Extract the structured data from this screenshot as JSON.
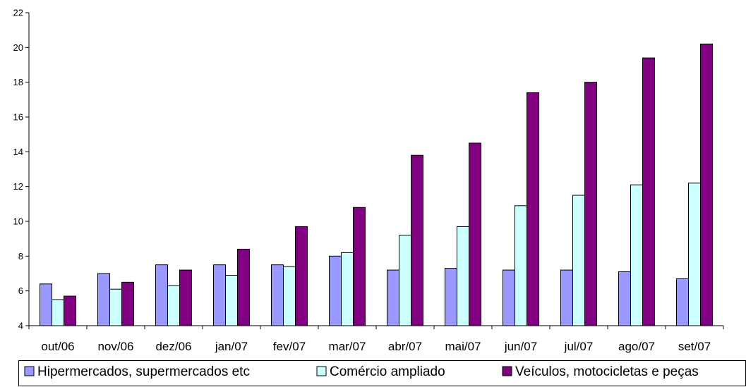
{
  "chart_data": {
    "type": "bar",
    "title": "",
    "xlabel": "",
    "ylabel": "",
    "ylim": [
      4,
      22
    ],
    "yticks": [
      4,
      6,
      8,
      10,
      12,
      14,
      16,
      18,
      20,
      22
    ],
    "grid": false,
    "legend_position": "bottom",
    "categories": [
      "out/06",
      "nov/06",
      "dez/06",
      "jan/07",
      "fev/07",
      "mar/07",
      "abr/07",
      "mai/07",
      "jun/07",
      "jul/07",
      "ago/07",
      "set/07"
    ],
    "series": [
      {
        "name": "Hipermercados, supermercados etc",
        "color": "#9999FF",
        "values": [
          6.4,
          7.0,
          7.5,
          7.5,
          7.5,
          8.0,
          7.2,
          7.3,
          7.2,
          7.2,
          7.1,
          6.7
        ]
      },
      {
        "name": "Comércio ampliado",
        "color": "#CCFFFF",
        "values": [
          5.5,
          6.1,
          6.3,
          6.9,
          7.4,
          8.2,
          9.2,
          9.7,
          10.9,
          11.5,
          12.1,
          12.2
        ]
      },
      {
        "name": "Veículos, motocicletas e peças",
        "color": "#800080",
        "values": [
          5.7,
          6.5,
          7.2,
          8.4,
          9.7,
          10.8,
          13.8,
          14.5,
          17.4,
          18.0,
          19.4,
          20.2
        ]
      }
    ]
  }
}
